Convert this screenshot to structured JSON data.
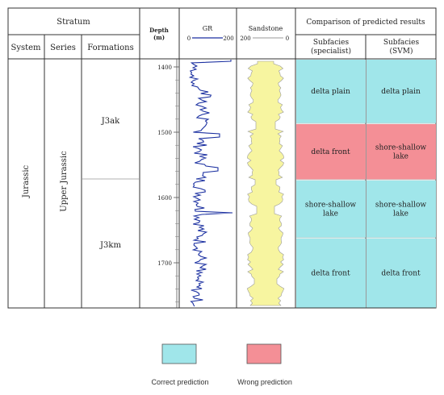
{
  "header": {
    "stratum": "Stratum",
    "system": "System",
    "series": "Series",
    "formations": "Formations",
    "depth_label": "Depth",
    "depth_unit": "(m)",
    "gr_label": "GR",
    "gr_min": "0",
    "gr_max": "200",
    "sandstone_label": "Sandstone",
    "sandstone_left": "200",
    "sandstone_right": "0",
    "comparison": "Comparison of predicted results",
    "subfacies_specialist_1": "Subfacies",
    "subfacies_specialist_2": "(specialist)",
    "subfacies_svm_1": "Subfacies",
    "subfacies_svm_2": "(SVM)"
  },
  "stratum": {
    "system": "Jurassic",
    "series": "Upper Jurassic",
    "formation_upper": "J3ak",
    "formation_lower": "J3km"
  },
  "depth_ticks": [
    "1400",
    "1500",
    "1600",
    "1700"
  ],
  "results": [
    {
      "specialist": "delta plain",
      "svm": "delta plain",
      "status": "correct"
    },
    {
      "specialist": "delta front",
      "svm": "shore-shallow lake",
      "status": "wrong"
    },
    {
      "specialist": "shore-shallow lake",
      "svm": "shore-shallow lake",
      "status": "correct"
    },
    {
      "specialist": "delta front",
      "svm": "delta front",
      "status": "correct"
    }
  ],
  "legend": {
    "correct_label": "Correct prediction",
    "wrong_label": "Wrong prediction"
  },
  "colors": {
    "correct": "#a0e6ea",
    "wrong": "#f48f96",
    "gr_curve": "#1a2fa0",
    "sandstone_fill": "#f7f5a0",
    "border": "#333333"
  }
}
